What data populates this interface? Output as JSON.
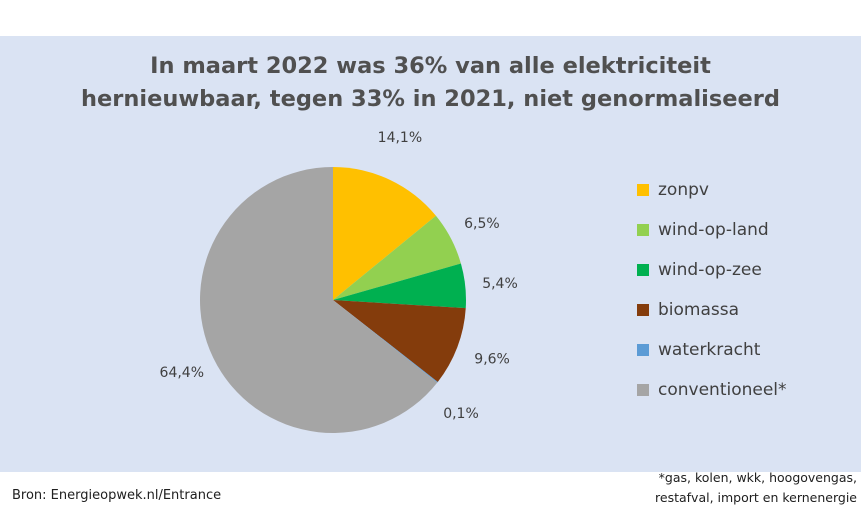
{
  "chart_data": {
    "type": "pie",
    "title": "In maart 2022 was 36% van alle elektriciteit\nhernieuwbaar, tegen 33% in 2021, niet genormaliseerd",
    "categories": [
      "zonpv",
      "wind-op-land",
      "wind-op-zee",
      "biomassa",
      "waterkracht",
      "conventioneel*"
    ],
    "values": [
      14.1,
      6.5,
      5.4,
      9.6,
      0.1,
      64.4
    ],
    "value_labels": [
      "14,1%",
      "6,5%",
      "5,4%",
      "9,6%",
      "0,1%",
      "64,4%"
    ],
    "colors": [
      "#ffc000",
      "#92d050",
      "#00b050",
      "#843c0c",
      "#5b9bd5",
      "#a5a5a5"
    ],
    "legend_position": "right"
  },
  "source": "Bron: Energieopwek.nl/Entrance",
  "footnote": "*gas, kolen, wkk, hoogovengas,\nrestafval, import en kernenergie"
}
